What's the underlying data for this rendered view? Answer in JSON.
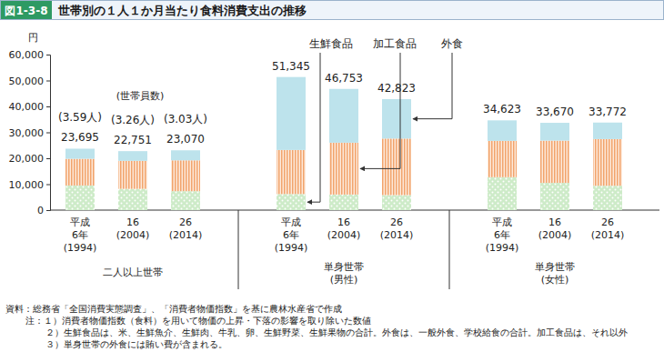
{
  "chart_data": {
    "type": "bar",
    "stacked": true,
    "grid": false,
    "figure_number": "図1-3-8",
    "title": "世帯別の１人１か月当たり食料消費支出の推移",
    "y_unit": "円",
    "categories": [
      "平成\n6年\n(1994)",
      "16\n(2004)",
      "26\n(2014)",
      "平成\n6年\n(1994)",
      "16\n(2004)",
      "26\n(2014)",
      "平成\n6年\n(1994)",
      "16\n(2004)",
      "26\n(2014)"
    ],
    "groups": [
      "二人以上世帯",
      "単身世帯\n(男性)",
      "単身世帯\n(女性)"
    ],
    "series": [
      {
        "name": "生鮮食品",
        "color": "#cdebc8",
        "values": [
          9500,
          8200,
          7300,
          6200,
          6000,
          5800,
          12700,
          10500,
          9400
        ]
      },
      {
        "name": "加工食品",
        "color": "#f2a46c",
        "values": [
          10300,
          10800,
          11900,
          17000,
          20000,
          21800,
          14000,
          16300,
          18000
        ]
      },
      {
        "name": "外食",
        "color": "#bde3ec",
        "values": [
          3895,
          3751,
          3870,
          28145,
          20753,
          15223,
          7923,
          6870,
          6372
        ]
      }
    ],
    "totals": [
      23695,
      22751,
      23070,
      51345,
      46753,
      42823,
      34623,
      33670,
      33772
    ],
    "total_labels": [
      "23,695",
      "22,751",
      "23,070",
      "51,345",
      "46,753",
      "42,823",
      "34,623",
      "33,670",
      "33,772"
    ],
    "household_size_title": "(世帯員数)",
    "household_sizes": [
      "(3.59人)",
      "(3.26人)",
      "(3.03人)"
    ],
    "ylim": [
      0,
      60000
    ],
    "yticks": [
      {
        "value": 0,
        "label": "0"
      },
      {
        "value": 10000,
        "label": "10,000"
      },
      {
        "value": 20000,
        "label": "20,000"
      },
      {
        "value": 30000,
        "label": "30,000"
      },
      {
        "value": 40000,
        "label": "40,000"
      },
      {
        "value": 50000,
        "label": "50,000"
      },
      {
        "value": 60000,
        "label": "60,000"
      }
    ],
    "notes": [
      "資料：総務省「全国消費実態調査」、「消費者物価指数」を基に農林水産省で作成",
      "注：１）消費者物価指数（食料）を用いて物価の上昇・下落の影響を取り除いた数値",
      "２）生鮮食品は、米、生鮮魚介、生鮮肉、牛乳、卵、生鮮野菜、生鮮果物の合計。外食は、一般外食、学校給食の合計。加工食品は、それ以外",
      "３）単身世帯の外食には賄い費が含まれる。"
    ]
  }
}
